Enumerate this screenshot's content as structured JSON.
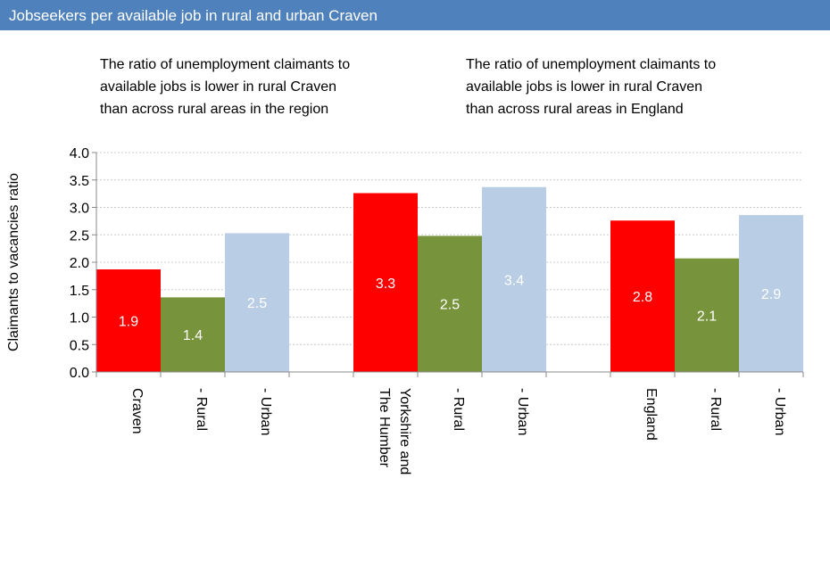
{
  "chart_data": {
    "type": "bar",
    "title": "Jobseekers per available job in rural and urban Craven",
    "annotations": [
      [
        "The ratio of unemployment claimants to",
        "available jobs is lower in rural Craven",
        "than across rural areas in the region"
      ],
      [
        "The ratio of unemployment claimants to",
        "available jobs is lower in rural Craven",
        "than across rural areas in England"
      ]
    ],
    "ylabel": "Claimants to vacancies ratio",
    "categories": [
      "Craven",
      "- Rural",
      "- Urban",
      null,
      "Yorkshire and The Humber",
      "- Rural",
      "- Urban",
      null,
      "England",
      "- Rural",
      "- Urban"
    ],
    "values": [
      1.87,
      1.36,
      2.53,
      null,
      3.26,
      2.48,
      3.37,
      null,
      2.76,
      2.07,
      2.86
    ],
    "value_labels": [
      "1.9",
      "1.4",
      "2.5",
      null,
      "3.3",
      "2.5",
      "3.4",
      null,
      "2.8",
      "2.1",
      "2.9"
    ],
    "colors": [
      "#ff0000",
      "#77933c",
      "#b9cde5",
      null,
      "#ff0000",
      "#77933c",
      "#b9cde5",
      null,
      "#ff0000",
      "#77933c",
      "#b9cde5"
    ],
    "ylim": [
      0,
      4
    ],
    "yticks": [
      {
        "value": 0,
        "label": "0.0"
      },
      0.5,
      {
        "value": 1,
        "label": "1.0"
      },
      1.5,
      {
        "value": 2,
        "label": "2.0"
      },
      2.5,
      {
        "value": 3,
        "label": "3.0"
      },
      3.5,
      {
        "value": 4,
        "label": "4.0"
      }
    ],
    "grid": true
  }
}
